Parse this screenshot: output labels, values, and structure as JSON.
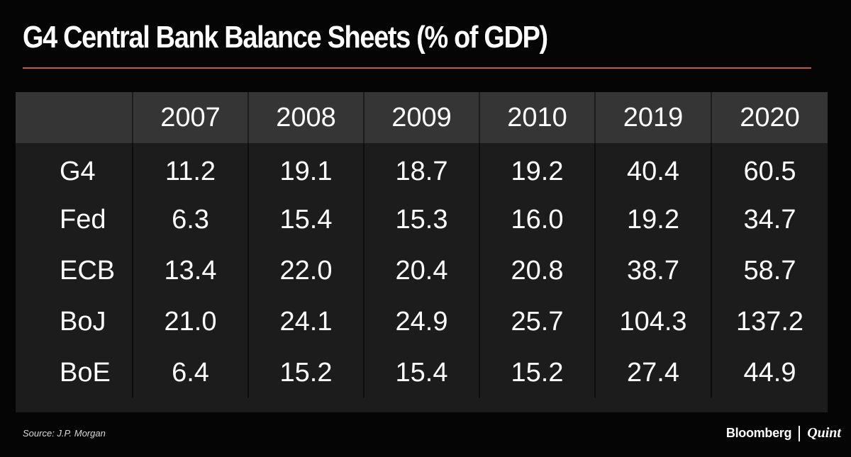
{
  "title": "G4 Central Bank Balance Sheets (% of GDP)",
  "source": "Source: J.P. Morgan",
  "brand": {
    "primary": "Bloomberg",
    "secondary": "Quint"
  },
  "colors": {
    "accent_rule": "#c9572a",
    "background": "#050505",
    "table_bg": "#1c1c1c",
    "header_bg": "#353535"
  },
  "chart_data": {
    "type": "table",
    "title": "G4 Central Bank Balance Sheets (% of GDP)",
    "columns": [
      "",
      "2007",
      "2008",
      "2009",
      "2010",
      "2019",
      "2020"
    ],
    "rows": [
      {
        "label": "G4",
        "values": [
          "11.2",
          "19.1",
          "18.7",
          "19.2",
          "40.4",
          "60.5"
        ]
      },
      {
        "label": "Fed",
        "values": [
          "6.3",
          "15.4",
          "15.3",
          "16.0",
          "19.2",
          "34.7"
        ]
      },
      {
        "label": "ECB",
        "values": [
          "13.4",
          "22.0",
          "20.4",
          "20.8",
          "38.7",
          "58.7"
        ]
      },
      {
        "label": "BoJ",
        "values": [
          "21.0",
          "24.1",
          "24.9",
          "25.7",
          "104.3",
          "137.2"
        ]
      },
      {
        "label": "BoE",
        "values": [
          "6.4",
          "15.2",
          "15.4",
          "15.2",
          "27.4",
          "44.9"
        ]
      }
    ]
  }
}
